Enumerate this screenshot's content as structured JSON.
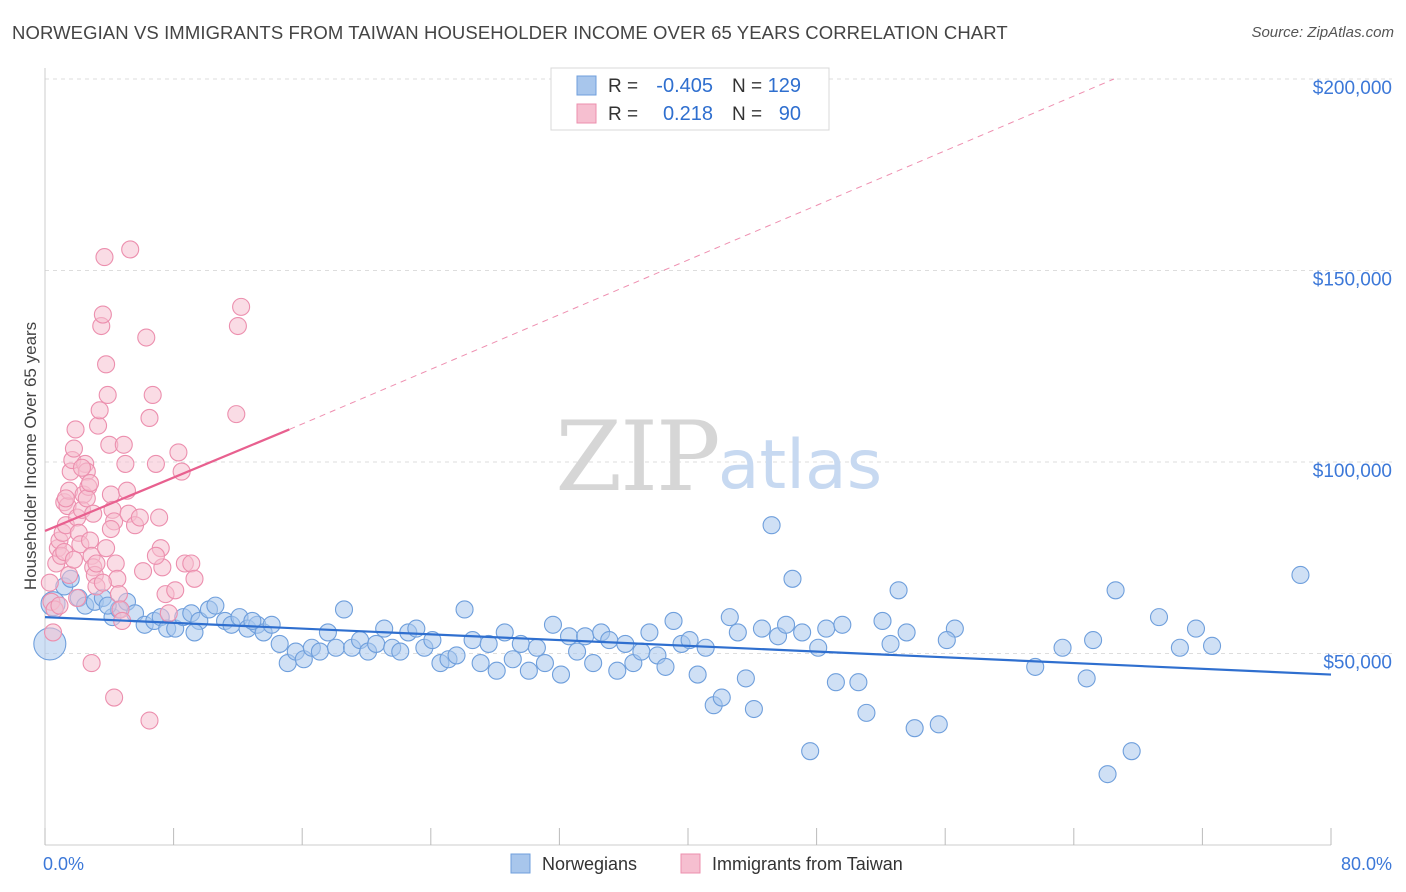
{
  "header": {
    "title": "NORWEGIAN VS IMMIGRANTS FROM TAIWAN HOUSEHOLDER INCOME OVER 65 YEARS CORRELATION CHART",
    "source": "Source: ZipAtlas.com"
  },
  "watermark": {
    "zip": "ZIP",
    "atlas": "atlas"
  },
  "stats": {
    "r_label": "R =",
    "n_label": "N =",
    "rows": [
      {
        "series": "Norwegians",
        "r": "-0.405",
        "n": "129"
      },
      {
        "series": "Immigrants from Taiwan",
        "r": "0.218",
        "n": "90"
      }
    ]
  },
  "colors": {
    "blue_fill": "#a8c6ec",
    "blue_stroke": "#6f9fdc",
    "blue_line": "#2f6fcf",
    "pink_fill": "#f6bfd0",
    "pink_stroke": "#ec8fae",
    "pink_line": "#e8608f",
    "axis_text": "#3c78d8",
    "grid": "#dddddd"
  },
  "chart_data": {
    "type": "scatter",
    "title": "NORWEGIAN VS IMMIGRANTS FROM TAIWAN HOUSEHOLDER INCOME OVER 65 YEARS CORRELATION CHART",
    "xlabel": "",
    "ylabel": "Householder Income Over 65 years",
    "xlim": [
      0,
      80
    ],
    "ylim": [
      0,
      205000
    ],
    "x_tick_labels": [
      "0.0%",
      "80.0%"
    ],
    "y_ticks": [
      50000,
      100000,
      150000,
      200000
    ],
    "y_tick_labels": [
      "$50,000",
      "$100,000",
      "$150,000",
      "$200,000"
    ],
    "legend": [
      "Norwegians",
      "Immigrants from Taiwan"
    ],
    "series": [
      {
        "name": "Norwegians",
        "trend": {
          "x0": 0,
          "y0": 59500,
          "x1": 80,
          "y1": 44500
        },
        "points": [
          [
            0.3,
            52500,
            "L"
          ],
          [
            0.5,
            63000,
            "M"
          ],
          [
            1.2,
            67500
          ],
          [
            1.6,
            69500
          ],
          [
            2.1,
            64500
          ],
          [
            2.5,
            62500
          ],
          [
            3.1,
            63500
          ],
          [
            3.6,
            64500
          ],
          [
            4.2,
            59500
          ],
          [
            4.6,
            61500
          ],
          [
            5.1,
            63500
          ],
          [
            5.6,
            60500
          ],
          [
            6.2,
            57500
          ],
          [
            6.8,
            58500
          ],
          [
            7.2,
            59500
          ],
          [
            7.6,
            56500
          ],
          [
            8.1,
            56500
          ],
          [
            8.6,
            59500
          ],
          [
            9.1,
            60500
          ],
          [
            9.6,
            58500
          ],
          [
            10.2,
            61500
          ],
          [
            10.6,
            62500
          ],
          [
            11.2,
            58500
          ],
          [
            11.6,
            57500
          ],
          [
            12.1,
            59500
          ],
          [
            12.6,
            56500
          ],
          [
            13.2,
            57500
          ],
          [
            13.6,
            55500
          ],
          [
            14.1,
            57500
          ],
          [
            14.6,
            52500
          ],
          [
            15.1,
            47500
          ],
          [
            15.6,
            50500
          ],
          [
            16.1,
            48500
          ],
          [
            16.6,
            51500
          ],
          [
            17.1,
            50500
          ],
          [
            17.6,
            55500
          ],
          [
            18.1,
            51500
          ],
          [
            18.6,
            61500
          ],
          [
            19.1,
            51500
          ],
          [
            19.6,
            53500
          ],
          [
            20.1,
            50500
          ],
          [
            20.6,
            52500
          ],
          [
            21.1,
            56500
          ],
          [
            21.6,
            51500
          ],
          [
            22.1,
            50500
          ],
          [
            22.6,
            55500
          ],
          [
            23.1,
            56500
          ],
          [
            23.6,
            51500
          ],
          [
            24.1,
            53500
          ],
          [
            24.6,
            47500
          ],
          [
            25.1,
            48500
          ],
          [
            25.6,
            49500
          ],
          [
            26.1,
            61500
          ],
          [
            26.6,
            53500
          ],
          [
            27.1,
            47500
          ],
          [
            27.6,
            52500
          ],
          [
            28.1,
            45500
          ],
          [
            28.6,
            55500
          ],
          [
            29.1,
            48500
          ],
          [
            29.6,
            52500
          ],
          [
            30.1,
            45500
          ],
          [
            30.6,
            51500
          ],
          [
            31.1,
            47500
          ],
          [
            31.6,
            57500
          ],
          [
            32.1,
            44500
          ],
          [
            32.6,
            54500
          ],
          [
            33.1,
            50500
          ],
          [
            33.6,
            54500
          ],
          [
            34.1,
            47500
          ],
          [
            34.6,
            55500
          ],
          [
            35.1,
            53500
          ],
          [
            35.6,
            45500
          ],
          [
            36.1,
            52500
          ],
          [
            36.6,
            47500
          ],
          [
            37.1,
            50500
          ],
          [
            37.6,
            55500
          ],
          [
            38.1,
            49500
          ],
          [
            38.6,
            46500
          ],
          [
            39.1,
            58500
          ],
          [
            39.6,
            52500
          ],
          [
            40.1,
            53500
          ],
          [
            40.6,
            44500
          ],
          [
            41.1,
            51500
          ],
          [
            41.6,
            36500
          ],
          [
            42.1,
            38500
          ],
          [
            42.6,
            59500
          ],
          [
            43.1,
            55500
          ],
          [
            43.6,
            43500
          ],
          [
            44.1,
            35500
          ],
          [
            44.6,
            56500
          ],
          [
            45.2,
            83500
          ],
          [
            45.6,
            54500
          ],
          [
            46.1,
            57500
          ],
          [
            46.5,
            69500
          ],
          [
            47.1,
            55500
          ],
          [
            47.6,
            24500
          ],
          [
            48.1,
            51500
          ],
          [
            48.6,
            56500
          ],
          [
            49.2,
            42500
          ],
          [
            49.6,
            57500
          ],
          [
            50.6,
            42500
          ],
          [
            51.1,
            34500
          ],
          [
            52.1,
            58500
          ],
          [
            52.6,
            52500
          ],
          [
            53.1,
            66500
          ],
          [
            53.6,
            55500
          ],
          [
            54.1,
            30500
          ],
          [
            55.6,
            31500
          ],
          [
            56.6,
            56500
          ],
          [
            56.1,
            53500
          ],
          [
            61.6,
            46500
          ],
          [
            63.3,
            51500
          ],
          [
            64.8,
            43500
          ],
          [
            65.2,
            53500
          ],
          [
            66.1,
            18500
          ],
          [
            66.6,
            66500
          ],
          [
            67.6,
            24500
          ],
          [
            69.3,
            59500
          ],
          [
            70.6,
            51500
          ],
          [
            71.6,
            56500
          ],
          [
            72.6,
            52000
          ],
          [
            78.1,
            70500
          ],
          [
            3.9,
            62500
          ],
          [
            9.3,
            55500
          ],
          [
            12.9,
            58500
          ]
        ]
      },
      {
        "name": "Immigrants from Taiwan",
        "trend": {
          "x0": 0,
          "y0": 82000,
          "x1": 15.2,
          "y1": 108500
        },
        "trend_ext": {
          "x0": 15.2,
          "y0": 108500,
          "x1": 66.5,
          "y1": 200000
        },
        "points": [
          [
            0.3,
            68500
          ],
          [
            0.4,
            63500
          ],
          [
            0.5,
            55500
          ],
          [
            0.6,
            61500
          ],
          [
            0.7,
            73500
          ],
          [
            0.8,
            77500
          ],
          [
            0.9,
            79500
          ],
          [
            1.0,
            75500
          ],
          [
            1.1,
            81500
          ],
          [
            1.2,
            89500
          ],
          [
            1.3,
            83500
          ],
          [
            1.4,
            88500
          ],
          [
            1.5,
            92500
          ],
          [
            1.6,
            97500
          ],
          [
            1.7,
            100500
          ],
          [
            1.8,
            103500
          ],
          [
            1.9,
            108500
          ],
          [
            2.0,
            85500
          ],
          [
            2.1,
            81500
          ],
          [
            2.2,
            78500
          ],
          [
            2.3,
            87500
          ],
          [
            2.4,
            91500
          ],
          [
            2.5,
            99500
          ],
          [
            2.6,
            97500
          ],
          [
            2.7,
            93500
          ],
          [
            2.8,
            79500
          ],
          [
            2.9,
            75500
          ],
          [
            3.0,
            72500
          ],
          [
            3.1,
            70500
          ],
          [
            3.2,
            67500
          ],
          [
            3.3,
            109500
          ],
          [
            3.4,
            113500
          ],
          [
            3.5,
            135500
          ],
          [
            3.6,
            138500
          ],
          [
            3.7,
            153500
          ],
          [
            3.8,
            125500
          ],
          [
            3.9,
            117500
          ],
          [
            4.0,
            104500
          ],
          [
            4.1,
            91500
          ],
          [
            4.2,
            87500
          ],
          [
            4.3,
            84500
          ],
          [
            4.4,
            73500
          ],
          [
            4.5,
            69500
          ],
          [
            4.6,
            65500
          ],
          [
            4.7,
            61500
          ],
          [
            4.8,
            58500
          ],
          [
            4.9,
            104500
          ],
          [
            5.0,
            99500
          ],
          [
            5.1,
            92500
          ],
          [
            5.2,
            86500
          ],
          [
            5.3,
            155500
          ],
          [
            6.3,
            132500
          ],
          [
            6.5,
            111500
          ],
          [
            6.7,
            117500
          ],
          [
            6.9,
            99500
          ],
          [
            7.1,
            85500
          ],
          [
            7.2,
            77500
          ],
          [
            7.3,
            72500
          ],
          [
            7.5,
            65500
          ],
          [
            7.7,
            60500
          ],
          [
            8.3,
            102500
          ],
          [
            8.5,
            97500
          ],
          [
            8.7,
            73500
          ],
          [
            9.1,
            73500
          ],
          [
            9.3,
            69500
          ],
          [
            12.2,
            140500
          ],
          [
            12.0,
            135500
          ],
          [
            11.9,
            112500
          ],
          [
            6.5,
            32500
          ],
          [
            4.3,
            38500
          ],
          [
            2.9,
            47500
          ],
          [
            1.2,
            76500
          ],
          [
            1.3,
            90500
          ],
          [
            1.5,
            70500
          ],
          [
            1.8,
            74500
          ],
          [
            2.0,
            64500
          ],
          [
            2.3,
            98500
          ],
          [
            2.6,
            90500
          ],
          [
            2.8,
            94500
          ],
          [
            3.0,
            86500
          ],
          [
            3.2,
            73500
          ],
          [
            3.6,
            68500
          ],
          [
            3.8,
            77500
          ],
          [
            4.1,
            82500
          ],
          [
            5.6,
            83500
          ],
          [
            5.9,
            85500
          ],
          [
            6.1,
            71500
          ],
          [
            6.9,
            75500
          ],
          [
            8.1,
            66500
          ],
          [
            0.9,
            62500
          ]
        ]
      }
    ]
  },
  "legend": {
    "items": [
      {
        "label": "Norwegians"
      },
      {
        "label": "Immigrants from Taiwan"
      }
    ]
  }
}
